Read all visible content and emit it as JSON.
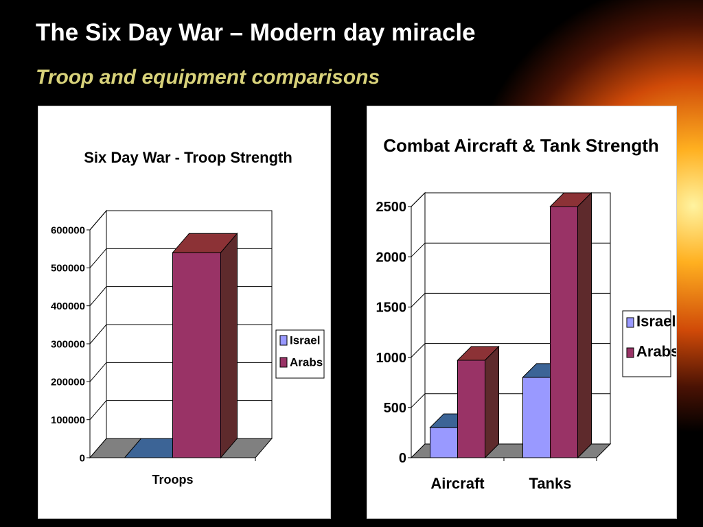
{
  "slide": {
    "title": "The Six Day War – Modern day miracle",
    "subtitle": "Troop and equipment comparisons"
  },
  "colors": {
    "israel_front": "#9999ff",
    "israel_top": "#3c6496",
    "arabs_front": "#993366",
    "arabs_top": "#8c3236",
    "arabs_side": "#5e2a2c",
    "floor": "#808080"
  },
  "chart_data": [
    {
      "type": "bar",
      "title": "Six Day War - Troop Strength",
      "categories": [
        "Troops"
      ],
      "series": [
        {
          "name": "Israel",
          "values": [
            0
          ]
        },
        {
          "name": "Arabs",
          "values": [
            540000
          ]
        }
      ],
      "ylim": [
        0,
        600000
      ],
      "yticks": [
        "0",
        "100000",
        "200000",
        "300000",
        "400000",
        "500000",
        "600000"
      ],
      "grid": true,
      "legend": "right"
    },
    {
      "type": "bar",
      "title": "Combat Aircraft & Tank Strength",
      "categories": [
        "Aircraft",
        "Tanks"
      ],
      "series": [
        {
          "name": "Israel",
          "values": [
            300,
            800
          ]
        },
        {
          "name": "Arabs",
          "values": [
            970,
            2500
          ]
        }
      ],
      "ylim": [
        0,
        2500
      ],
      "yticks": [
        "0",
        "500",
        "1000",
        "1500",
        "2000",
        "2500"
      ],
      "grid": true,
      "legend": "right"
    }
  ]
}
